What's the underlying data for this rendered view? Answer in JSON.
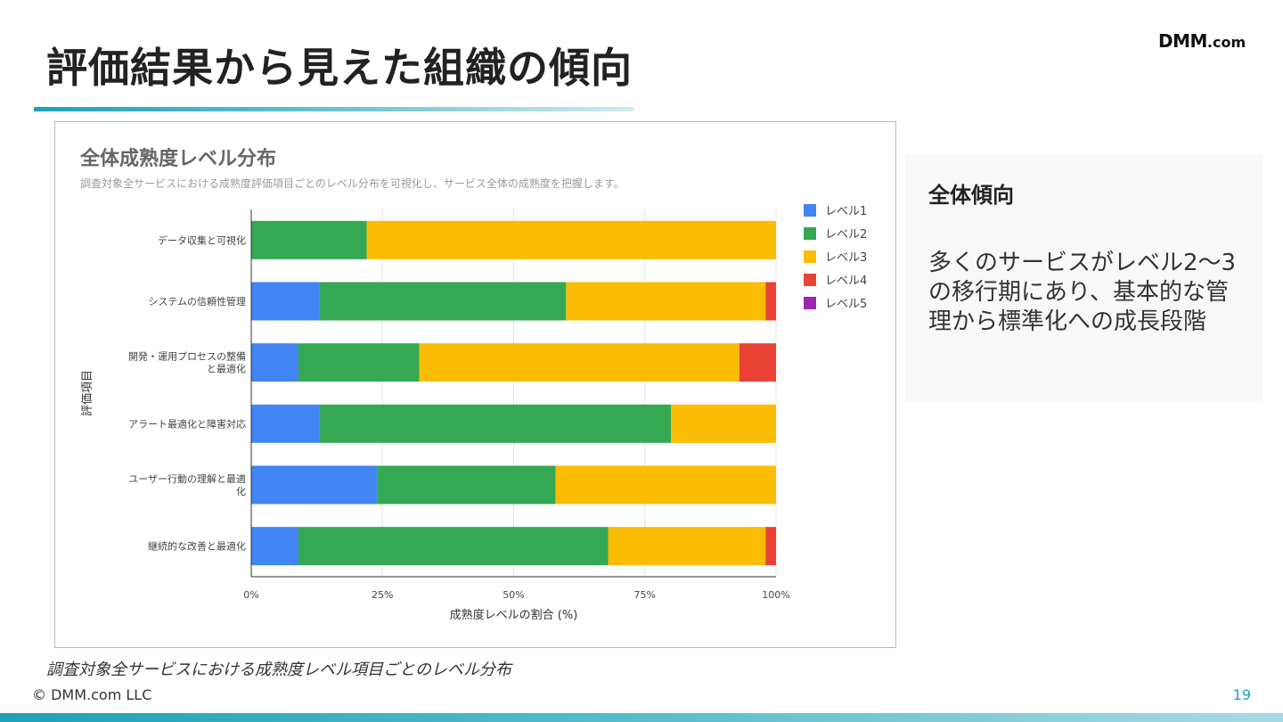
{
  "slide": {
    "title": "評価結果から見えた組織の傾向",
    "logo_main": "DMM",
    "logo_suffix": ".com",
    "caption": "調査対象全サービスにおける成熟度レベル項目ごとのレベル分布",
    "copyright": "© DMM.com LLC",
    "page_number": "19"
  },
  "panel": {
    "heading": "全体傾向",
    "body": "多くのサービスがレベル2〜3の移行期にあり、基本的な管理から標準化への成長段階"
  },
  "colors": {
    "level1": "#4285f4",
    "level2": "#34a853",
    "level3": "#fbbc04",
    "level4": "#ea4335",
    "level5": "#9c27b0",
    "accent": "#1ea1b8"
  },
  "chart_data": {
    "type": "bar",
    "orientation": "horizontal",
    "stacked": true,
    "title": "全体成熟度レベル分布",
    "subtitle": "調査対象全サービスにおける成熟度評価項目ごとのレベル分布を可視化し、サービス全体の成熟度を把握します。",
    "xlabel": "成熟度レベルの割合 (%)",
    "ylabel": "評価項目",
    "xlim": [
      0,
      100
    ],
    "xticks": [
      "0%",
      "25%",
      "50%",
      "75%",
      "100%"
    ],
    "grid": true,
    "legend_position": "top-right",
    "categories": [
      [
        "データ収集と可視化"
      ],
      [
        "システムの信頼性管理"
      ],
      [
        "開発・運用プロセスの整備",
        "と最適化"
      ],
      [
        "アラート最適化と障害対応"
      ],
      [
        "ユーザー行動の理解と最適",
        "化"
      ],
      [
        "継続的な改善と最適化"
      ]
    ],
    "series": [
      {
        "name": "レベル1",
        "color": "#4285f4",
        "values": [
          0,
          13,
          9,
          13,
          24,
          9
        ]
      },
      {
        "name": "レベル2",
        "color": "#34a853",
        "values": [
          22,
          47,
          23,
          67,
          34,
          59
        ]
      },
      {
        "name": "レベル3",
        "color": "#fbbc04",
        "values": [
          78,
          38,
          61,
          20,
          42,
          30
        ]
      },
      {
        "name": "レベル4",
        "color": "#ea4335",
        "values": [
          0,
          2,
          7,
          0,
          0,
          2
        ]
      },
      {
        "name": "レベル5",
        "color": "#9c27b0",
        "values": [
          0,
          0,
          0,
          0,
          0,
          0
        ]
      }
    ]
  }
}
